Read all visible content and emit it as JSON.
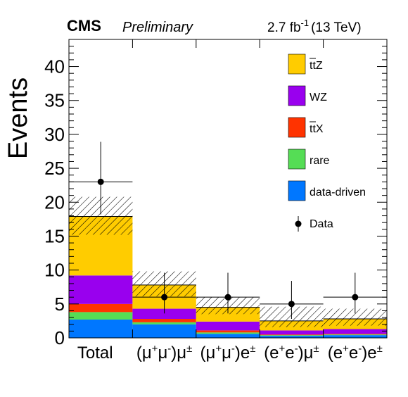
{
  "header": {
    "experiment": "CMS",
    "status": "Preliminary",
    "lumi_value": "2.7 fb",
    "lumi_exp": "-1",
    "energy": "(13 TeV)"
  },
  "colors": {
    "ttZ": "#ffcc00",
    "WZ": "#9900ee",
    "ttX": "#ff3300",
    "rare": "#55dd55",
    "data_driven": "#0077ff",
    "data": "#000000"
  },
  "chart_data": {
    "type": "bar",
    "stacked": true,
    "categories": [
      {
        "base": "Total",
        "parts": []
      },
      {
        "parts": [
          {
            "t": "(μ"
          },
          {
            "t": "+",
            "sup": true
          },
          {
            "t": "μ"
          },
          {
            "t": "-",
            "sup": true
          },
          {
            "t": ")μ"
          },
          {
            "t": "±",
            "sup": true
          }
        ]
      },
      {
        "parts": [
          {
            "t": "(μ"
          },
          {
            "t": "+",
            "sup": true
          },
          {
            "t": "μ"
          },
          {
            "t": "-",
            "sup": true
          },
          {
            "t": ")e"
          },
          {
            "t": "±",
            "sup": true
          }
        ]
      },
      {
        "parts": [
          {
            "t": "(e"
          },
          {
            "t": "+",
            "sup": true
          },
          {
            "t": "e"
          },
          {
            "t": "-",
            "sup": true
          },
          {
            "t": ")μ"
          },
          {
            "t": "±",
            "sup": true
          }
        ]
      },
      {
        "parts": [
          {
            "t": "(e"
          },
          {
            "t": "+",
            "sup": true
          },
          {
            "t": "e"
          },
          {
            "t": "-",
            "sup": true
          },
          {
            "t": ")e"
          },
          {
            "t": "±",
            "sup": true
          }
        ]
      }
    ],
    "series": [
      {
        "key": "data_driven",
        "values": [
          2.7,
          2.0,
          0.6,
          0.3,
          0.4
        ]
      },
      {
        "key": "rare",
        "values": [
          1.1,
          0.3,
          0.2,
          0.1,
          0.1
        ]
      },
      {
        "key": "ttX",
        "values": [
          1.2,
          0.5,
          0.3,
          0.1,
          0.1
        ]
      },
      {
        "key": "WZ",
        "values": [
          4.2,
          1.5,
          1.3,
          0.6,
          0.7
        ]
      },
      {
        "key": "ttZ",
        "values": [
          8.7,
          3.5,
          2.1,
          1.4,
          1.5
        ]
      }
    ],
    "uncertainty_band": {
      "low": [
        15.2,
        6.1,
        3.5,
        1.6,
        1.8
      ],
      "high": [
        20.8,
        9.8,
        6.0,
        4.6,
        4.3
      ]
    },
    "data": {
      "values": [
        23,
        6,
        6,
        5,
        6
      ],
      "err_low": [
        4.8,
        2.4,
        2.4,
        2.2,
        2.4
      ],
      "err_high": [
        5.9,
        3.6,
        3.6,
        3.4,
        3.6
      ]
    },
    "ylabel": "Events",
    "ylim": [
      0,
      44
    ],
    "yticks": [
      "0",
      "5",
      "10",
      "15",
      "20",
      "25",
      "30",
      "35",
      "40"
    ],
    "ytick_values": [
      0,
      5,
      10,
      15,
      20,
      25,
      30,
      35,
      40
    ],
    "legend": [
      {
        "key": "ttZ",
        "label": "ttZ",
        "bar": "tt"
      },
      {
        "key": "WZ",
        "label": "WZ"
      },
      {
        "key": "ttX",
        "label": "ttX",
        "bar": "tt"
      },
      {
        "key": "rare",
        "label": "rare"
      },
      {
        "key": "data_driven",
        "label": "data-driven"
      },
      {
        "key": "data",
        "label": "Data",
        "marker": true
      }
    ],
    "legend_position": "top-right"
  }
}
